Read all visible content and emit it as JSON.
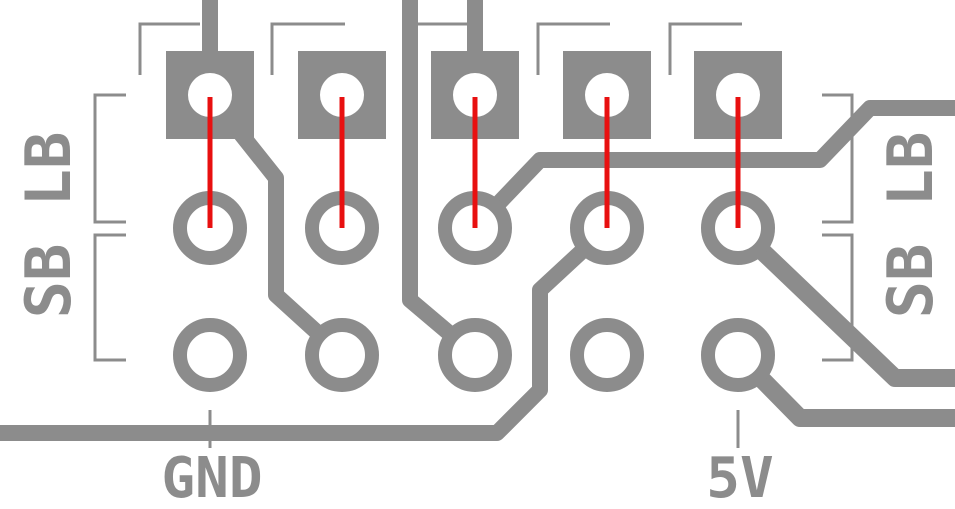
{
  "labels": {
    "gnd": "GND",
    "v5": "5V",
    "side_left": "SB LB",
    "side_right": "SB LB"
  },
  "colors": {
    "copper": "#8c8c8c",
    "jumper": "#e81010",
    "background": "#ffffff"
  },
  "header": {
    "columns": 5,
    "rows": 3,
    "top_row_pad_shape": "square",
    "other_pad_shape": "round"
  }
}
